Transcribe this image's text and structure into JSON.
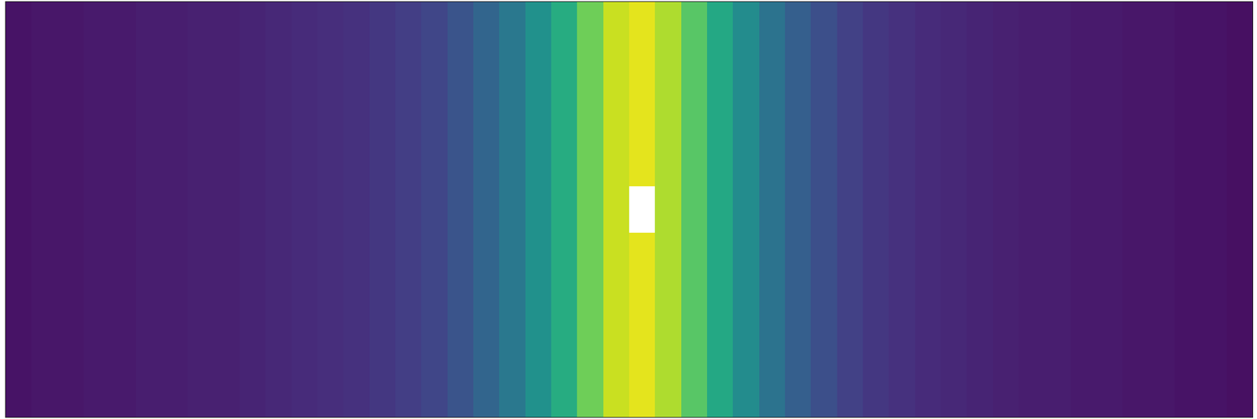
{
  "chart_data": {
    "type": "heatmap",
    "color": "viridis",
    "tick_labels": false,
    "zlim": [
      0,
      1
    ],
    "z": [
      [
        0.05,
        0.06,
        0.06,
        0.07,
        0.07,
        0.08,
        0.08,
        0.09,
        0.09,
        0.1,
        0.11,
        0.12,
        0.13,
        0.14,
        0.16,
        0.18,
        0.21,
        0.26,
        0.32,
        0.4,
        0.5,
        0.62,
        0.78,
        0.92,
        0.96,
        0.88,
        0.74,
        0.6,
        0.48,
        0.38,
        0.3,
        0.24,
        0.19,
        0.16,
        0.14,
        0.12,
        0.11,
        0.1,
        0.09,
        0.08,
        0.08,
        0.07,
        0.07,
        0.06,
        0.06,
        0.05,
        0.05,
        0.04
      ],
      [
        0.05,
        0.06,
        0.06,
        0.07,
        0.07,
        0.08,
        0.08,
        0.09,
        0.09,
        0.1,
        0.11,
        0.12,
        0.13,
        0.14,
        0.16,
        0.18,
        0.21,
        0.26,
        0.32,
        0.4,
        0.5,
        0.62,
        0.78,
        0.92,
        0.96,
        0.88,
        0.74,
        0.6,
        0.48,
        0.38,
        0.3,
        0.24,
        0.19,
        0.16,
        0.14,
        0.12,
        0.11,
        0.1,
        0.09,
        0.08,
        0.08,
        0.07,
        0.07,
        0.06,
        0.06,
        0.05,
        0.05,
        0.04
      ],
      [
        0.05,
        0.06,
        0.06,
        0.07,
        0.07,
        0.08,
        0.08,
        0.09,
        0.09,
        0.1,
        0.11,
        0.12,
        0.13,
        0.14,
        0.16,
        0.18,
        0.21,
        0.26,
        0.32,
        0.4,
        0.5,
        0.62,
        0.78,
        0.92,
        0.96,
        0.88,
        0.74,
        0.6,
        0.48,
        0.38,
        0.3,
        0.24,
        0.19,
        0.16,
        0.14,
        0.12,
        0.11,
        0.1,
        0.09,
        0.08,
        0.08,
        0.07,
        0.07,
        0.06,
        0.06,
        0.05,
        0.05,
        0.04
      ],
      [
        0.05,
        0.06,
        0.06,
        0.07,
        0.07,
        0.08,
        0.08,
        0.09,
        0.09,
        0.1,
        0.11,
        0.12,
        0.13,
        0.14,
        0.16,
        0.18,
        0.21,
        0.26,
        0.32,
        0.4,
        0.5,
        0.62,
        0.78,
        0.92,
        0.96,
        0.88,
        0.74,
        0.6,
        0.48,
        0.38,
        0.3,
        0.24,
        0.19,
        0.16,
        0.14,
        0.12,
        0.11,
        0.1,
        0.09,
        0.08,
        0.08,
        0.07,
        0.07,
        0.06,
        0.06,
        0.05,
        0.05,
        0.04
      ],
      [
        0.05,
        0.06,
        0.06,
        0.07,
        0.07,
        0.08,
        0.08,
        0.09,
        0.09,
        0.1,
        0.11,
        0.12,
        0.13,
        0.14,
        0.16,
        0.18,
        0.21,
        0.26,
        0.32,
        0.4,
        0.5,
        0.62,
        0.78,
        0.92,
        null,
        0.88,
        0.74,
        0.6,
        0.48,
        0.38,
        0.3,
        0.24,
        0.19,
        0.16,
        0.14,
        0.12,
        0.11,
        0.1,
        0.09,
        0.08,
        0.08,
        0.07,
        0.07,
        0.06,
        0.06,
        0.05,
        0.05,
        0.04
      ],
      [
        0.05,
        0.06,
        0.06,
        0.07,
        0.07,
        0.08,
        0.08,
        0.09,
        0.09,
        0.1,
        0.11,
        0.12,
        0.13,
        0.14,
        0.16,
        0.18,
        0.21,
        0.26,
        0.32,
        0.4,
        0.5,
        0.62,
        0.78,
        0.92,
        0.96,
        0.88,
        0.74,
        0.6,
        0.48,
        0.38,
        0.3,
        0.24,
        0.19,
        0.16,
        0.14,
        0.12,
        0.11,
        0.1,
        0.09,
        0.08,
        0.08,
        0.07,
        0.07,
        0.06,
        0.06,
        0.05,
        0.05,
        0.04
      ],
      [
        0.05,
        0.06,
        0.06,
        0.07,
        0.07,
        0.08,
        0.08,
        0.09,
        0.09,
        0.1,
        0.11,
        0.12,
        0.13,
        0.14,
        0.16,
        0.18,
        0.21,
        0.26,
        0.32,
        0.4,
        0.5,
        0.62,
        0.78,
        0.92,
        0.96,
        0.88,
        0.74,
        0.6,
        0.48,
        0.38,
        0.3,
        0.24,
        0.19,
        0.16,
        0.14,
        0.12,
        0.11,
        0.1,
        0.09,
        0.08,
        0.08,
        0.07,
        0.07,
        0.06,
        0.06,
        0.05,
        0.05,
        0.04
      ],
      [
        0.05,
        0.06,
        0.06,
        0.07,
        0.07,
        0.08,
        0.08,
        0.09,
        0.09,
        0.1,
        0.11,
        0.12,
        0.13,
        0.14,
        0.16,
        0.18,
        0.21,
        0.26,
        0.32,
        0.4,
        0.5,
        0.62,
        0.78,
        0.92,
        0.96,
        0.88,
        0.74,
        0.6,
        0.48,
        0.38,
        0.3,
        0.24,
        0.19,
        0.16,
        0.14,
        0.12,
        0.11,
        0.1,
        0.09,
        0.08,
        0.08,
        0.07,
        0.07,
        0.06,
        0.06,
        0.05,
        0.05,
        0.04
      ],
      [
        0.05,
        0.06,
        0.06,
        0.07,
        0.07,
        0.08,
        0.08,
        0.09,
        0.09,
        0.1,
        0.11,
        0.12,
        0.13,
        0.14,
        0.16,
        0.18,
        0.21,
        0.26,
        0.32,
        0.4,
        0.5,
        0.62,
        0.78,
        0.92,
        0.96,
        0.88,
        0.74,
        0.6,
        0.48,
        0.38,
        0.3,
        0.24,
        0.19,
        0.16,
        0.14,
        0.12,
        0.11,
        0.1,
        0.09,
        0.08,
        0.08,
        0.07,
        0.07,
        0.06,
        0.06,
        0.05,
        0.05,
        0.04
      ]
    ]
  }
}
